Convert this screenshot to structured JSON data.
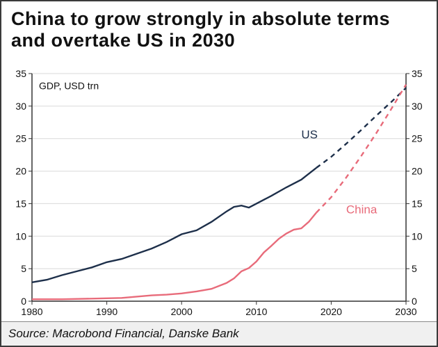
{
  "title": "China to grow strongly in absolute terms and overtake US in 2030",
  "footer": "Source: Macrobond Financial, Danske Bank",
  "chart": {
    "type": "line",
    "y_axis_label": "GDP, USD trn",
    "xlim": [
      1980,
      2030
    ],
    "ylim": [
      0,
      35
    ],
    "xticks": [
      1980,
      1990,
      2000,
      2010,
      2020,
      2030
    ],
    "yticks": [
      0,
      5,
      10,
      15,
      20,
      25,
      30,
      35
    ],
    "background_color": "#ffffff",
    "grid_color": "#d9d9d9",
    "axis_color": "#333333",
    "line_width": 2.4,
    "dash_pattern": "7 6",
    "historical_end_x": 2018,
    "series": [
      {
        "name": "US",
        "label": "US",
        "color": "#1d2f4a",
        "label_x": 2016,
        "label_y": 25,
        "points_solid": [
          [
            1980,
            2.9
          ],
          [
            1982,
            3.3
          ],
          [
            1984,
            4.0
          ],
          [
            1986,
            4.6
          ],
          [
            1988,
            5.2
          ],
          [
            1990,
            6.0
          ],
          [
            1992,
            6.5
          ],
          [
            1994,
            7.3
          ],
          [
            1996,
            8.1
          ],
          [
            1998,
            9.1
          ],
          [
            2000,
            10.3
          ],
          [
            2002,
            10.9
          ],
          [
            2004,
            12.2
          ],
          [
            2006,
            13.8
          ],
          [
            2007,
            14.5
          ],
          [
            2008,
            14.7
          ],
          [
            2009,
            14.4
          ],
          [
            2010,
            15.0
          ],
          [
            2012,
            16.2
          ],
          [
            2014,
            17.5
          ],
          [
            2016,
            18.7
          ],
          [
            2018,
            20.5
          ]
        ],
        "points_dashed": [
          [
            2018,
            20.5
          ],
          [
            2020,
            22.2
          ],
          [
            2022,
            24.2
          ],
          [
            2024,
            26.3
          ],
          [
            2026,
            28.5
          ],
          [
            2028,
            30.6
          ],
          [
            2030,
            32.8
          ]
        ]
      },
      {
        "name": "China",
        "label": "China",
        "color": "#e86b7a",
        "label_x": 2022,
        "label_y": 13.5,
        "points_solid": [
          [
            1980,
            0.3
          ],
          [
            1984,
            0.3
          ],
          [
            1988,
            0.4
          ],
          [
            1992,
            0.5
          ],
          [
            1996,
            0.9
          ],
          [
            1998,
            1.0
          ],
          [
            2000,
            1.2
          ],
          [
            2002,
            1.5
          ],
          [
            2004,
            1.9
          ],
          [
            2006,
            2.8
          ],
          [
            2007,
            3.5
          ],
          [
            2008,
            4.6
          ],
          [
            2009,
            5.1
          ],
          [
            2010,
            6.1
          ],
          [
            2011,
            7.5
          ],
          [
            2012,
            8.5
          ],
          [
            2013,
            9.6
          ],
          [
            2014,
            10.4
          ],
          [
            2015,
            11.0
          ],
          [
            2016,
            11.2
          ],
          [
            2017,
            12.2
          ],
          [
            2018,
            13.6
          ]
        ],
        "points_dashed": [
          [
            2018,
            13.6
          ],
          [
            2020,
            16.0
          ],
          [
            2022,
            19.0
          ],
          [
            2024,
            22.3
          ],
          [
            2026,
            25.8
          ],
          [
            2028,
            29.5
          ],
          [
            2030,
            33.3
          ]
        ]
      }
    ]
  }
}
